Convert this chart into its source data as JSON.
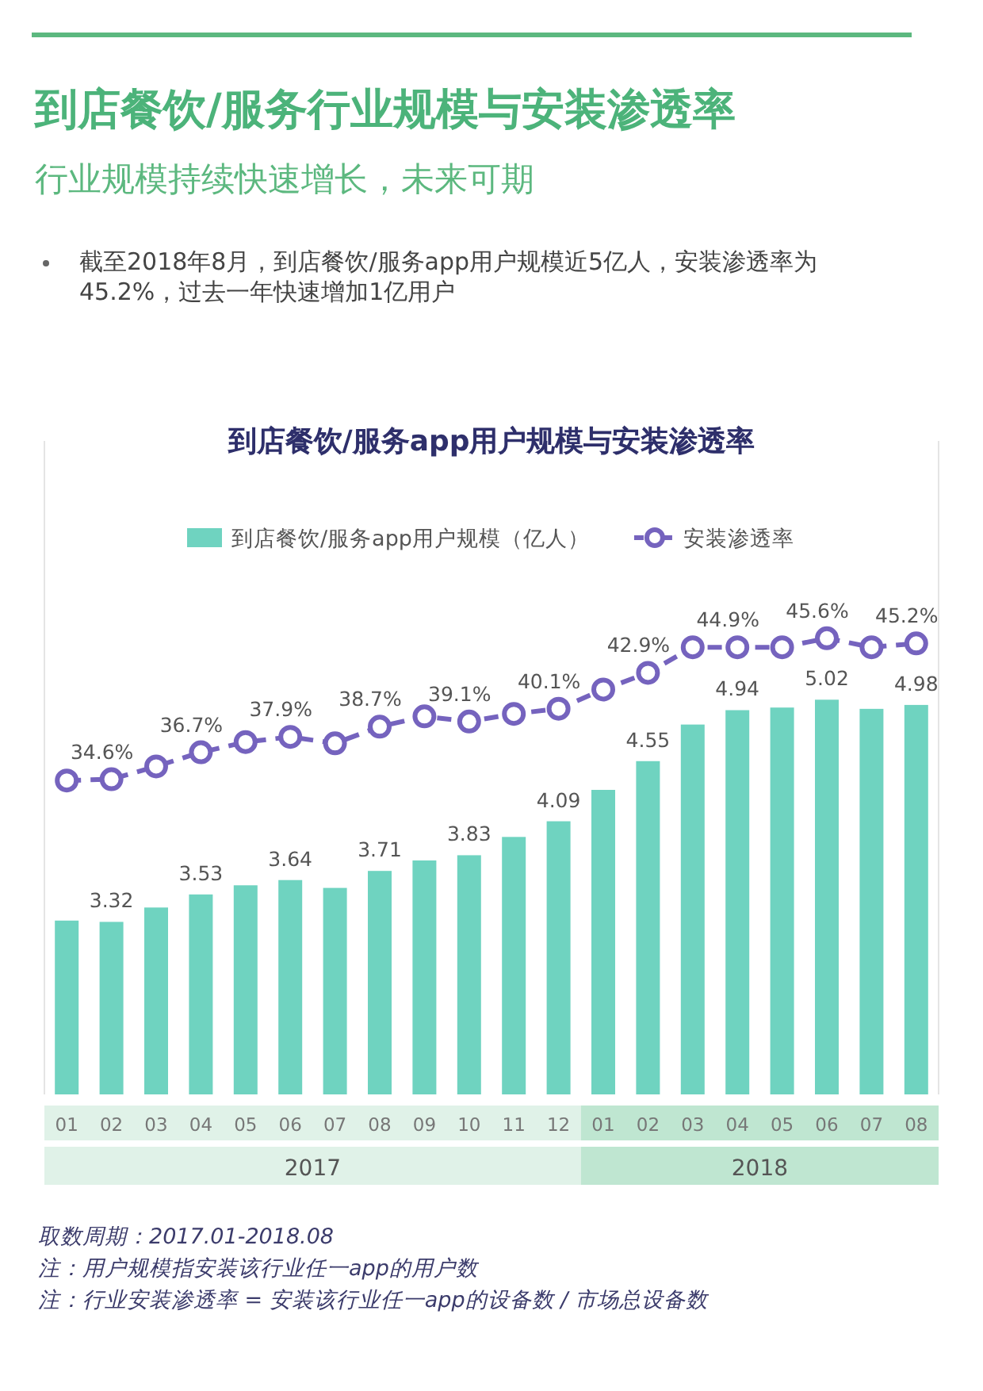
{
  "chart_data": {
    "type": "bar",
    "title": "到店餐饮/服务行业规模与安装渗透率",
    "subtitle": "行业规模持续快速增长，未来可期",
    "annotations": [
      "截至2018年8月，到店餐饮/服务app用户规模近5亿人，安装渗透率为45.2%，过去一年快速增加1亿用户",
      "到店餐饮/服务app用户规模与安装渗透率",
      "取数周期：2017.01-2018.08",
      "注：用户规模指安装该行业任一app的用户数",
      "注：行业安装渗透率 = 安装该行业任一app的设备数 / 市场总设备数",
      "2017",
      "2018"
    ],
    "categories": [
      "01",
      "02",
      "03",
      "04",
      "05",
      "06",
      "07",
      "08",
      "09",
      "10",
      "11",
      "12",
      "01",
      "02",
      "03",
      "04",
      "05",
      "06",
      "07",
      "08"
    ],
    "ylim": [
      2,
      7
    ],
    "y2lim": [
      10,
      61
    ],
    "legend": "top",
    "series": [
      {
        "name": "到店餐饮/服务app用户规模（亿人）",
        "color": "#6fd3c0",
        "values": [
          3.33,
          3.32,
          3.43,
          3.53,
          3.6,
          3.64,
          3.58,
          3.71,
          3.79,
          3.83,
          3.97,
          4.09,
          4.33,
          4.55,
          4.83,
          4.94,
          4.96,
          5.02,
          4.95,
          4.98
        ],
        "value_labels": [
          null,
          "3.32",
          null,
          "3.53",
          null,
          "3.64",
          null,
          "3.71",
          null,
          "3.83",
          null,
          "4.09",
          null,
          "4.55",
          null,
          "4.94",
          null,
          "5.02",
          null,
          "4.98"
        ]
      },
      {
        "name": "安装渗透率",
        "type": "line",
        "axis": "y2",
        "color": "#7563be",
        "marker": "circle",
        "line_style": "dashed",
        "values": [
          34.5,
          34.6,
          35.6,
          36.7,
          37.5,
          37.9,
          37.4,
          38.7,
          39.5,
          39.1,
          39.7,
          40.1,
          41.6,
          42.9,
          44.9,
          44.9,
          44.9,
          45.6,
          44.9,
          45.2
        ],
        "value_labels": [
          null,
          "34.6%",
          null,
          "36.7%",
          null,
          "37.9%",
          null,
          "38.7%",
          null,
          "39.1%",
          null,
          "40.1%",
          null,
          "42.9%",
          null,
          "44.9%",
          null,
          "45.6%",
          null,
          "45.2%"
        ]
      }
    ]
  }
}
